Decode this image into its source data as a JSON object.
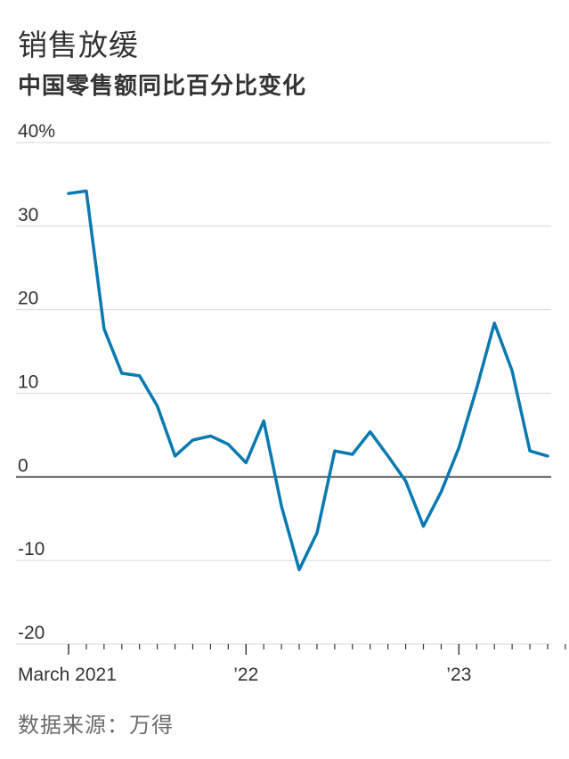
{
  "title": "销售放缓",
  "subtitle": "中国零售额同比百分比变化",
  "source": "数据来源：万得",
  "chart_data": {
    "type": "line",
    "title": "销售放缓",
    "subtitle": "中国零售额同比百分比变化",
    "xlabel": "",
    "ylabel": "",
    "ylim": [
      -20,
      40
    ],
    "grid": true,
    "yticks": [
      {
        "value": 40,
        "label": "40%"
      },
      {
        "value": 30,
        "label": "30"
      },
      {
        "value": 20,
        "label": "20"
      },
      {
        "value": 10,
        "label": "10"
      },
      {
        "value": 0,
        "label": "0"
      },
      {
        "value": -10,
        "label": "-10"
      },
      {
        "value": -20,
        "label": "-20"
      }
    ],
    "xticks": [
      {
        "index": 0,
        "label": "March 2021"
      },
      {
        "index": 10,
        "label": "’22"
      },
      {
        "index": 22,
        "label": "’23"
      }
    ],
    "minor_tick_count": 30,
    "series": [
      {
        "color": "#0a79b0",
        "x_start": 0,
        "values": [
          33.9,
          34.2,
          17.7,
          12.4,
          12.1,
          8.5,
          2.5,
          4.4,
          4.9,
          3.9,
          1.7,
          6.7,
          -3.5,
          -11.1,
          -6.7,
          3.1,
          2.7,
          5.4,
          2.5,
          -0.5,
          -5.9,
          -1.8,
          3.5,
          10.6,
          18.4,
          12.7,
          3.1,
          2.5
        ]
      }
    ]
  }
}
